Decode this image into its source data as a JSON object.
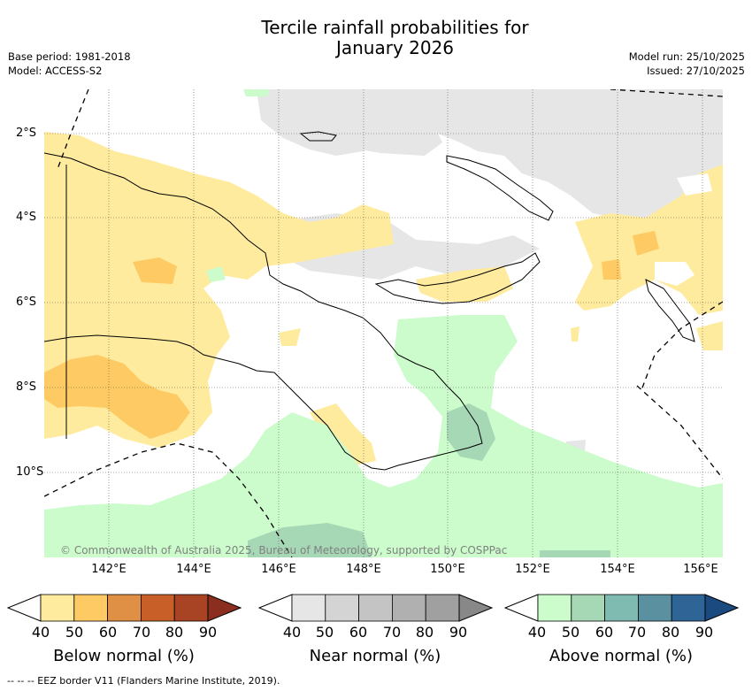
{
  "title": {
    "line1": "Tercile rainfall probabilities for",
    "line2": "January 2026"
  },
  "meta_left": {
    "base_period": "Base period: 1981-2018",
    "model": "Model: ACCESS-S2"
  },
  "meta_right": {
    "model_run": "Model run: 25/10/2025",
    "issued": "Issued: 27/10/2025"
  },
  "map": {
    "latitude_labels": [
      "2°S",
      "4°S",
      "6°S",
      "8°S",
      "10°S"
    ],
    "longitude_labels": [
      "142°E",
      "144°E",
      "146°E",
      "148°E",
      "150°E",
      "152°E",
      "154°E",
      "156°E"
    ],
    "copyright": "© Commonwealth of Australia 2025, Bureau of Meteorology, supported by COSPPac"
  },
  "colorbars": [
    {
      "label": "Below normal (%)",
      "ticks": [
        "40",
        "50",
        "60",
        "70",
        "80",
        "90"
      ],
      "colors": [
        "#ffeb9e",
        "#fdca64",
        "#df9044",
        "#c85f29",
        "#a84423",
        "#8a2f1f"
      ]
    },
    {
      "label": "Near normal (%)",
      "ticks": [
        "40",
        "50",
        "60",
        "70",
        "80",
        "90"
      ],
      "colors": [
        "#e6e6e6",
        "#d4d4d4",
        "#c4c4c4",
        "#b0b0b0",
        "#a0a0a0",
        "#888888"
      ]
    },
    {
      "label": "Above normal (%)",
      "ticks": [
        "40",
        "50",
        "60",
        "70",
        "80",
        "90"
      ],
      "colors": [
        "#ccfccc",
        "#a6d8b6",
        "#80bbb2",
        "#5a90a0",
        "#2e6496",
        "#1a4a80"
      ]
    }
  ],
  "footnote": "--  --  -- EEZ border V11 (Flanders Marine Institute, 2019)."
}
